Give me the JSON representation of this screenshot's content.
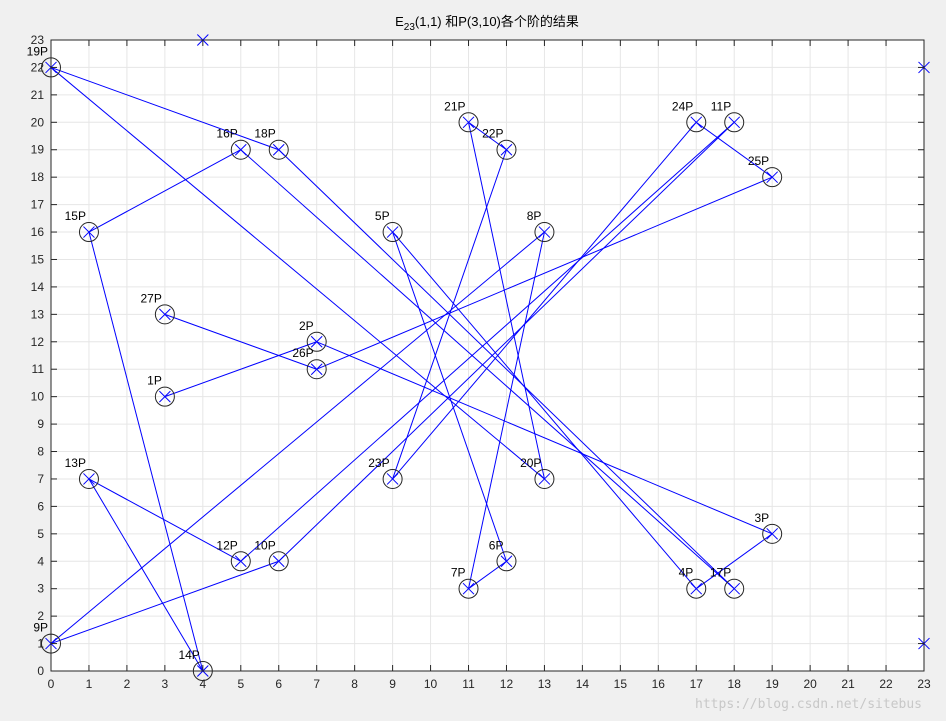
{
  "chart_data": {
    "type": "scatter",
    "title": {
      "main": "E",
      "sub": "23",
      "rest": "(1,1) 和P(3,10)各个阶的结果"
    },
    "xlim": [
      0,
      23
    ],
    "ylim": [
      0,
      23
    ],
    "xticks": [
      0,
      1,
      2,
      3,
      4,
      5,
      6,
      7,
      8,
      9,
      10,
      11,
      12,
      13,
      14,
      15,
      16,
      17,
      18,
      19,
      20,
      21,
      22,
      23
    ],
    "yticks": [
      0,
      1,
      2,
      3,
      4,
      5,
      6,
      7,
      8,
      9,
      10,
      11,
      12,
      13,
      14,
      15,
      16,
      17,
      18,
      19,
      20,
      21,
      22,
      23
    ],
    "grid": true,
    "curve_points_color": "#0000ff",
    "circle_color": "#262626",
    "line_color": "#0000ff",
    "curve_points": [
      [
        0,
        1
      ],
      [
        0,
        22
      ],
      [
        1,
        7
      ],
      [
        1,
        16
      ],
      [
        3,
        10
      ],
      [
        3,
        13
      ],
      [
        4,
        0
      ],
      [
        4,
        23
      ],
      [
        5,
        4
      ],
      [
        5,
        19
      ],
      [
        6,
        4
      ],
      [
        6,
        19
      ],
      [
        7,
        11
      ],
      [
        7,
        12
      ],
      [
        9,
        7
      ],
      [
        9,
        16
      ],
      [
        11,
        3
      ],
      [
        11,
        20
      ],
      [
        12,
        4
      ],
      [
        12,
        19
      ],
      [
        13,
        7
      ],
      [
        13,
        16
      ],
      [
        17,
        3
      ],
      [
        17,
        20
      ],
      [
        18,
        3
      ],
      [
        18,
        20
      ],
      [
        19,
        5
      ],
      [
        19,
        18
      ],
      [
        23,
        1
      ],
      [
        23,
        22
      ]
    ],
    "multiples": [
      {
        "label": "1P",
        "x": 3,
        "y": 10
      },
      {
        "label": "2P",
        "x": 7,
        "y": 12
      },
      {
        "label": "3P",
        "x": 19,
        "y": 5
      },
      {
        "label": "4P",
        "x": 17,
        "y": 3
      },
      {
        "label": "5P",
        "x": 9,
        "y": 16
      },
      {
        "label": "6P",
        "x": 12,
        "y": 4
      },
      {
        "label": "7P",
        "x": 11,
        "y": 3
      },
      {
        "label": "8P",
        "x": 13,
        "y": 16
      },
      {
        "label": "9P",
        "x": 0,
        "y": 1
      },
      {
        "label": "10P",
        "x": 6,
        "y": 4
      },
      {
        "label": "11P",
        "x": 18,
        "y": 20
      },
      {
        "label": "12P",
        "x": 5,
        "y": 4
      },
      {
        "label": "13P",
        "x": 1,
        "y": 7
      },
      {
        "label": "14P",
        "x": 4,
        "y": 0
      },
      {
        "label": "15P",
        "x": 1,
        "y": 16
      },
      {
        "label": "16P",
        "x": 5,
        "y": 19
      },
      {
        "label": "17P",
        "x": 18,
        "y": 3
      },
      {
        "label": "18P",
        "x": 6,
        "y": 19
      },
      {
        "label": "19P",
        "x": 0,
        "y": 22
      },
      {
        "label": "20P",
        "x": 13,
        "y": 7
      },
      {
        "label": "21P",
        "x": 11,
        "y": 20
      },
      {
        "label": "22P",
        "x": 12,
        "y": 19
      },
      {
        "label": "23P",
        "x": 9,
        "y": 7
      },
      {
        "label": "24P",
        "x": 17,
        "y": 20
      },
      {
        "label": "25P",
        "x": 19,
        "y": 18
      },
      {
        "label": "26P",
        "x": 7,
        "y": 11
      },
      {
        "label": "27P",
        "x": 3,
        "y": 13
      }
    ]
  },
  "watermark": "https://blog.csdn.net/sitebus"
}
